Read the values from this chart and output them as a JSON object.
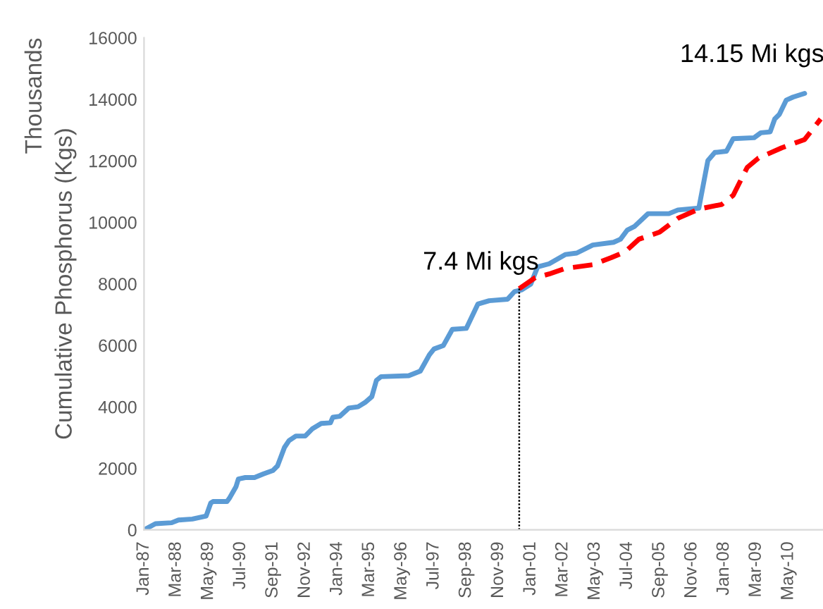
{
  "chart_data": {
    "type": "line",
    "ylabel": "Cumulative Phosphorus (Kgs)",
    "annotations": [
      "Thousands",
      {
        "text": "7.4 Mi kgs",
        "x": "2000-08",
        "y": 7400
      },
      {
        "text": "14.15 Mi kgs",
        "x": "2010-12",
        "y": 14150
      }
    ],
    "series": [
      {
        "color": "#5b9bd5",
        "line_style": "solid",
        "x": [
          "1987-01",
          "1987-06",
          "1988-01",
          "1988-04",
          "1988-10",
          "1989-04",
          "1989-06",
          "1989-07",
          "1990-01",
          "1990-02",
          "1990-05",
          "1990-06",
          "1990-09",
          "1991-01",
          "1991-05",
          "1991-09",
          "1991-11",
          "1992-02",
          "1992-04",
          "1992-07",
          "1992-11",
          "1993-02",
          "1993-06",
          "1993-10",
          "1993-11",
          "1994-02",
          "1994-06",
          "1994-10",
          "1995-01",
          "1995-04",
          "1995-06",
          "1995-08",
          "1996-08",
          "1997-01",
          "1997-05",
          "1997-07",
          "1997-11",
          "1998-03",
          "1998-09",
          "1999-02",
          "1999-07",
          "2000-03",
          "2000-06",
          "2000-09",
          "2001-01",
          "2001-04",
          "2001-09",
          "2002-04",
          "2002-09",
          "2003-04",
          "2004-01",
          "2004-04",
          "2004-07",
          "2004-10",
          "2005-04",
          "2006-01",
          "2006-05",
          "2007-02",
          "2007-06",
          "2007-09",
          "2008-02",
          "2008-05",
          "2009-02",
          "2009-05",
          "2009-09",
          "2009-11",
          "2010-01",
          "2010-04",
          "2010-07",
          "2010-12"
        ],
        "values": [
          0,
          200,
          230,
          320,
          350,
          450,
          870,
          920,
          920,
          1020,
          1400,
          1650,
          1700,
          1700,
          1820,
          1930,
          2080,
          2680,
          2900,
          3050,
          3050,
          3280,
          3460,
          3480,
          3660,
          3690,
          3960,
          4000,
          4140,
          4330,
          4860,
          4980,
          5010,
          5160,
          5690,
          5880,
          5990,
          6520,
          6550,
          7340,
          7450,
          7500,
          7750,
          7800,
          7990,
          8550,
          8650,
          8950,
          9000,
          9260,
          9350,
          9450,
          9750,
          9860,
          10280,
          10280,
          10400,
          10460,
          12010,
          12270,
          12310,
          12720,
          12750,
          12910,
          12940,
          13360,
          13510,
          13970,
          14070,
          14190
        ]
      },
      {
        "color": "#ff0000",
        "line_style": "dashed",
        "x": [
          "2000-08",
          "2001-03",
          "2001-09",
          "2002-04",
          "2003-04",
          "2003-12",
          "2004-06",
          "2004-12",
          "2005-09",
          "2006-05",
          "2007-02",
          "2007-12",
          "2008-05",
          "2008-11",
          "2009-04",
          "2010-02",
          "2010-12",
          "2011-07"
        ],
        "values": [
          7840,
          8200,
          8320,
          8500,
          8620,
          8850,
          9040,
          9450,
          9680,
          10130,
          10430,
          10580,
          10880,
          11780,
          12090,
          12420,
          12690,
          13360
        ]
      }
    ],
    "ref_lines": [
      {
        "axis": "x",
        "value": "2000-08",
        "color": "#000000",
        "line_style": "dotted"
      }
    ],
    "xlim": [
      "1987-01",
      "2011-08"
    ],
    "ylim": [
      0,
      16000
    ],
    "yticks": [
      0,
      2000,
      4000,
      6000,
      8000,
      10000,
      12000,
      14000,
      16000
    ],
    "xticks": [
      {
        "value": "1987-01",
        "label": "Jan-87"
      },
      {
        "value": "1988-03",
        "label": "Mar-88"
      },
      {
        "value": "1989-05",
        "label": "May-89"
      },
      {
        "value": "1990-07",
        "label": "Jul-90"
      },
      {
        "value": "1991-09",
        "label": "Sep-91"
      },
      {
        "value": "1992-11",
        "label": "Nov-92"
      },
      {
        "value": "1994-01",
        "label": "Jan-94"
      },
      {
        "value": "1995-03",
        "label": "Mar-95"
      },
      {
        "value": "1996-05",
        "label": "May-96"
      },
      {
        "value": "1997-07",
        "label": "Jul-97"
      },
      {
        "value": "1998-09",
        "label": "Sep-98"
      },
      {
        "value": "1999-11",
        "label": "Nov-99"
      },
      {
        "value": "2001-01",
        "label": "Jan-01"
      },
      {
        "value": "2002-03",
        "label": "Mar-02"
      },
      {
        "value": "2003-05",
        "label": "May-03"
      },
      {
        "value": "2004-07",
        "label": "Jul-04"
      },
      {
        "value": "2005-09",
        "label": "Sep-05"
      },
      {
        "value": "2006-11",
        "label": "Nov-06"
      },
      {
        "value": "2008-01",
        "label": "Jan-08"
      },
      {
        "value": "2009-03",
        "label": "Mar-09"
      },
      {
        "value": "2010-05",
        "label": "May-10"
      }
    ],
    "grid": false,
    "marker": "none"
  }
}
